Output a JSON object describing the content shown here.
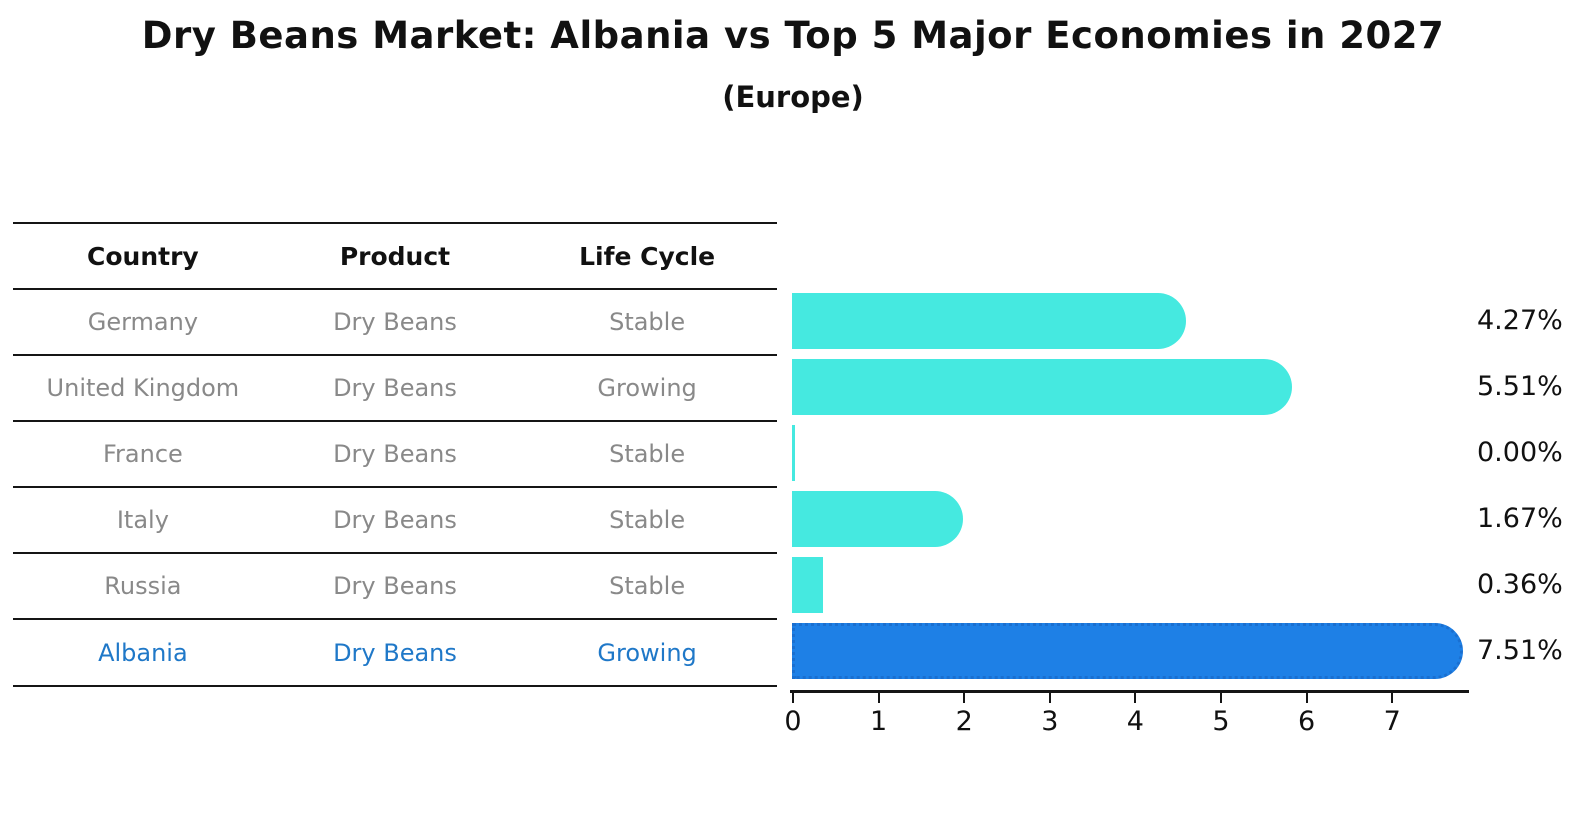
{
  "title": "Dry Beans Market: Albania vs Top 5 Major Economies in 2027",
  "subtitle": "(Europe)",
  "table": {
    "headers": [
      "Country",
      "Product",
      "Life Cycle"
    ],
    "rows": [
      {
        "country": "Germany",
        "product": "Dry Beans",
        "life_cycle": "Stable"
      },
      {
        "country": "United Kingdom",
        "product": "Dry Beans",
        "life_cycle": "Growing"
      },
      {
        "country": "France",
        "product": "Dry Beans",
        "life_cycle": "Stable"
      },
      {
        "country": "Italy",
        "product": "Dry Beans",
        "life_cycle": "Stable"
      },
      {
        "country": "Russia",
        "product": "Dry Beans",
        "life_cycle": "Stable"
      },
      {
        "country": "Albania",
        "product": "Dry Beans",
        "life_cycle": "Growing"
      }
    ]
  },
  "chart_data": {
    "type": "bar",
    "orientation": "horizontal",
    "categories": [
      "Germany",
      "United Kingdom",
      "France",
      "Italy",
      "Russia",
      "Albania"
    ],
    "values": [
      4.27,
      5.51,
      0.0,
      1.67,
      0.36,
      7.51
    ],
    "value_labels": [
      "4.27%",
      "5.51%",
      "0.00%",
      "1.67%",
      "0.36%",
      "7.51%"
    ],
    "xticks": [
      "0",
      "1",
      "2",
      "3",
      "4",
      "5",
      "6",
      "7"
    ],
    "xlim": [
      0,
      7.51
    ],
    "grid": false,
    "legend": "none",
    "highlight_index": 5,
    "bar_color": "#45E9E0",
    "highlight_bar_color": "#1E80E6",
    "highlight_border_color": "#1A6FD0",
    "highlight_text_color": "#1F78C8",
    "title": "Dry Beans Market: Albania vs Top 5 Major Economies in 2027",
    "xlabel": "",
    "ylabel": ""
  }
}
